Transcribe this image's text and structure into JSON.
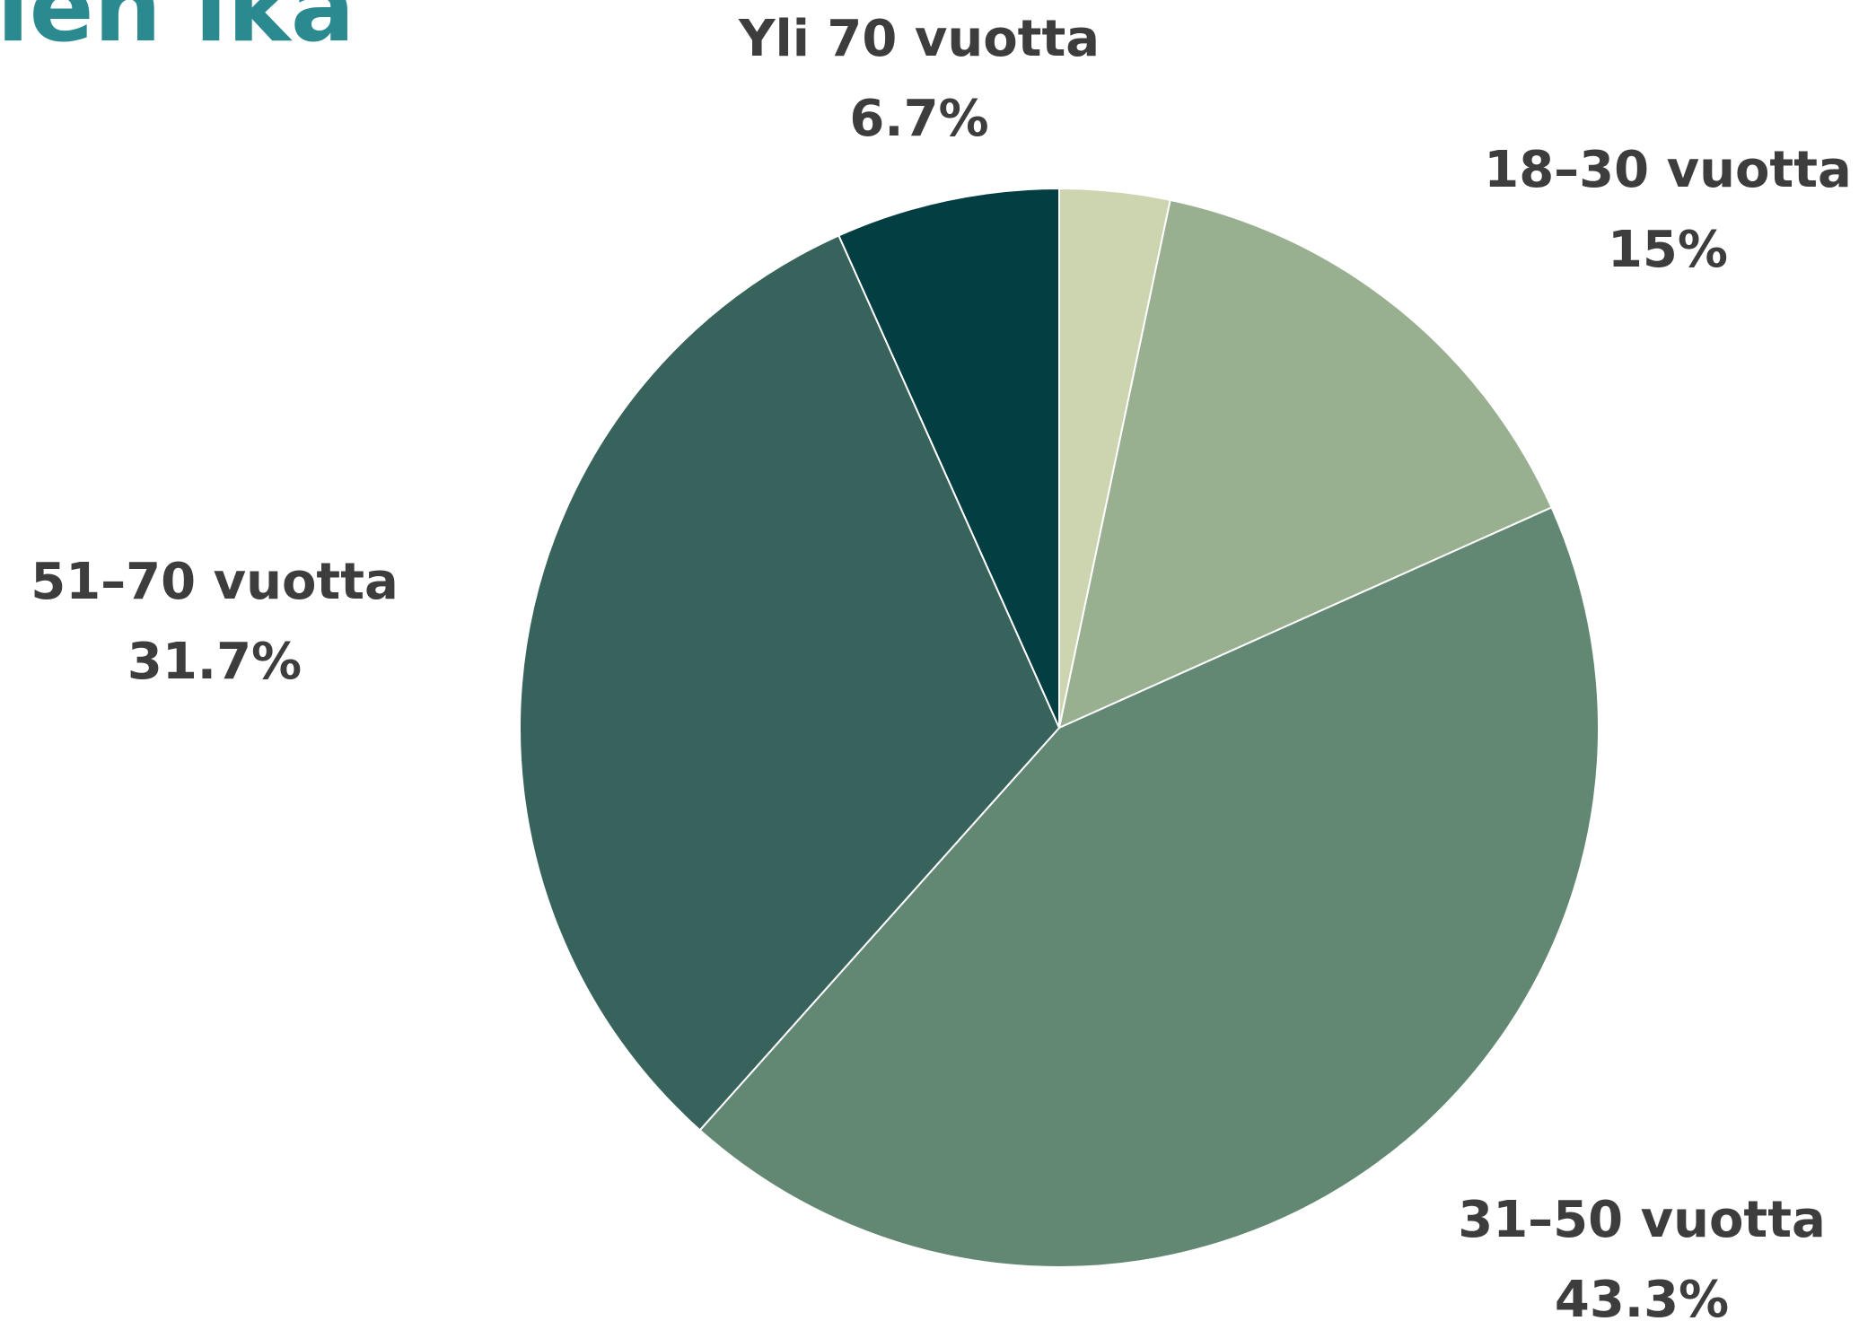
{
  "chart_data": {
    "type": "pie",
    "title": "jien ikä",
    "categories": [
      null,
      "18–30 vuotta",
      "31–50 vuotta",
      "51–70 vuotta",
      "Yli 70 vuotta"
    ],
    "values": [
      3.3,
      15,
      43.3,
      31.7,
      6.7
    ],
    "value_labels": [
      null,
      "15%",
      "43.3%",
      "31.7%",
      "6.7%"
    ],
    "colors": [
      "#cdd4b0",
      "#98af90",
      "#628873",
      "#37635c",
      "#033e42"
    ]
  }
}
